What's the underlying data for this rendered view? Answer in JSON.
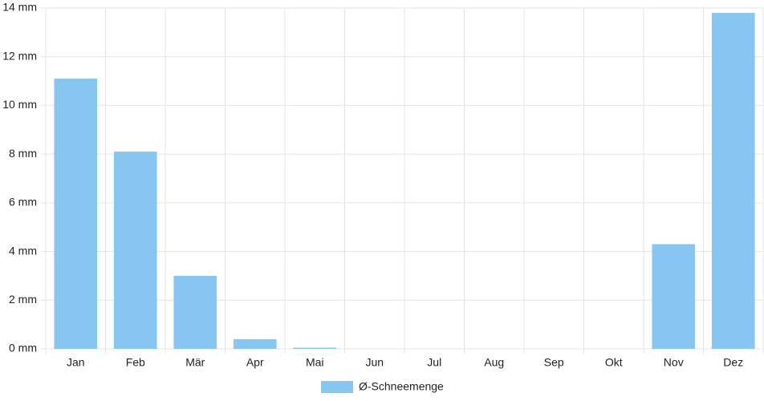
{
  "chart_data": {
    "type": "bar",
    "categories": [
      "Jan",
      "Feb",
      "Mär",
      "Apr",
      "Mai",
      "Jun",
      "Jul",
      "Aug",
      "Sep",
      "Okt",
      "Nov",
      "Dez"
    ],
    "series": [
      {
        "name": "Ø-Schneemenge",
        "color": "#88c6f2",
        "values": [
          11.1,
          8.1,
          3.0,
          0.4,
          0.05,
          0,
          0,
          0,
          0,
          0,
          4.3,
          13.8
        ]
      }
    ],
    "ylim": [
      0,
      14
    ],
    "yticks": [
      {
        "value": 0,
        "label": "0 mm"
      },
      {
        "value": 2,
        "label": "2 mm"
      },
      {
        "value": 4,
        "label": "4 mm"
      },
      {
        "value": 6,
        "label": "6 mm"
      },
      {
        "value": 8,
        "label": "8 mm"
      },
      {
        "value": 10,
        "label": "10 mm"
      },
      {
        "value": 12,
        "label": "12 mm"
      },
      {
        "value": 14,
        "label": "14 mm"
      }
    ],
    "grid": true,
    "legend": "bottom"
  }
}
